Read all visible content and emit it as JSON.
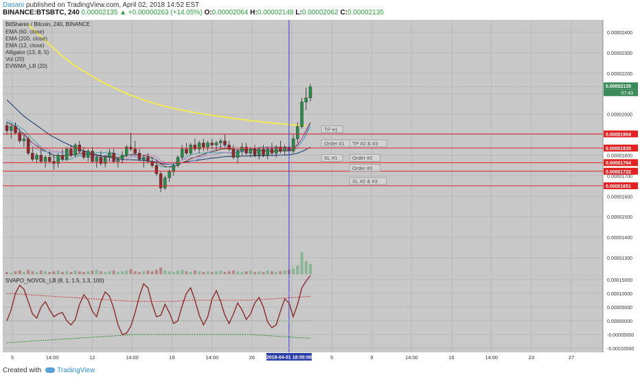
{
  "header": {
    "author": "Dasani",
    "published": "published on TradingView.com, April 02, 2018 14:52 EST",
    "symbol": "BINANCE:BTSBTC, 240",
    "last": "0.00002135",
    "change_arrow": "▲",
    "change": "+0.00000263 (+14.05%)",
    "o_label": "O:",
    "o": "0.00002064",
    "h_label": "H:",
    "h": "0.00002148",
    "l_label": "L:",
    "l": "0.00002062",
    "c_label": "C:",
    "c": "0.00002135"
  },
  "legend": {
    "title": "BitShares / Bitcoin, 240, BINANCE",
    "indicators": [
      "EMA (60, close)",
      "EMA (200, close)",
      "EMA (12, close)",
      "Alligator (13, 8, 5)",
      "Vol (20)",
      "EVWMA_LB (20)"
    ]
  },
  "oscillator": {
    "title": "SVAPO_NOVOL_LB (8, 1, 1.5, 1.3, 100)"
  },
  "footer": {
    "created": "Created with",
    "brand": "TradingView"
  },
  "colors": {
    "bg": "#c8c8c8",
    "grid": "#b8b8b8",
    "up": "#2a8c4a",
    "down": "#8b2a2a",
    "ema200": "#f2ea4e",
    "ema60": "#2a4a7a",
    "ema12": "#6a2a2a",
    "level": "#e22222",
    "cursor": "#3a3ad8",
    "osc": "#8a2a2a",
    "osc_upper": "#cc3333",
    "osc_lower": "#2a8a2a",
    "osc_mid": "#7aa07a"
  },
  "chart_data": {
    "type": "candlestick",
    "title": "BitShares / Bitcoin, 240, BINANCE",
    "price_ticks": [
      "0.00002400",
      "0.00002300",
      "0.00002200",
      "0.00002100",
      "0.00002000",
      "0.00001900",
      "0.00001800",
      "0.00001700",
      "0.00001600",
      "0.00001500",
      "0.00001400",
      "0.00001300"
    ],
    "price_ylim": [
      1.22e-05,
      2.46e-05
    ],
    "x_ticks": [
      "5",
      "14:00",
      "12",
      "14:00",
      "19",
      "14:00",
      "26",
      "14:00",
      "5",
      "9",
      "14:00",
      "16",
      "14:00",
      "23",
      "27"
    ],
    "cursor_label": "2018-04-01 18:00:00",
    "last_price_label": "0.00002135",
    "countdown_label": "07:43",
    "last_price": 2.135e-05,
    "candles": [
      [
        1.945e-05,
        1.965e-05,
        1.9e-05,
        1.92e-05
      ],
      [
        1.92e-05,
        1.95e-05,
        1.88e-05,
        1.94e-05
      ],
      [
        1.94e-05,
        1.96e-05,
        1.9e-05,
        1.91e-05
      ],
      [
        1.91e-05,
        1.93e-05,
        1.86e-05,
        1.87e-05
      ],
      [
        1.87e-05,
        1.9e-05,
        1.84e-05,
        1.88e-05
      ],
      [
        1.88e-05,
        1.89e-05,
        1.8e-05,
        1.81e-05
      ],
      [
        1.81e-05,
        1.84e-05,
        1.77e-05,
        1.78e-05
      ],
      [
        1.78e-05,
        1.81e-05,
        1.76e-05,
        1.8e-05
      ],
      [
        1.8e-05,
        1.83e-05,
        1.76e-05,
        1.77e-05
      ],
      [
        1.77e-05,
        1.8e-05,
        1.74e-05,
        1.79e-05
      ],
      [
        1.79e-05,
        1.82e-05,
        1.76e-05,
        1.77e-05
      ],
      [
        1.77e-05,
        1.8e-05,
        1.73e-05,
        1.76e-05
      ],
      [
        1.76e-05,
        1.81e-05,
        1.74e-05,
        1.8e-05
      ],
      [
        1.8e-05,
        1.83e-05,
        1.77e-05,
        1.78e-05
      ],
      [
        1.78e-05,
        1.84e-05,
        1.77e-05,
        1.83e-05
      ],
      [
        1.83e-05,
        1.85e-05,
        1.79e-05,
        1.8e-05
      ],
      [
        1.8e-05,
        1.86e-05,
        1.79e-05,
        1.85e-05
      ],
      [
        1.85e-05,
        1.87e-05,
        1.81e-05,
        1.82e-05
      ],
      [
        1.82e-05,
        1.84e-05,
        1.78e-05,
        1.79e-05
      ],
      [
        1.79e-05,
        1.83e-05,
        1.77e-05,
        1.82e-05
      ],
      [
        1.82e-05,
        1.84e-05,
        1.76e-05,
        1.77e-05
      ],
      [
        1.77e-05,
        1.8e-05,
        1.74e-05,
        1.79e-05
      ],
      [
        1.79e-05,
        1.82e-05,
        1.75e-05,
        1.76e-05
      ],
      [
        1.76e-05,
        1.8e-05,
        1.74e-05,
        1.79e-05
      ],
      [
        1.79e-05,
        1.83e-05,
        1.77e-05,
        1.81e-05
      ],
      [
        1.81e-05,
        1.83e-05,
        1.76e-05,
        1.77e-05
      ],
      [
        1.77e-05,
        1.79e-05,
        1.74e-05,
        1.78e-05
      ],
      [
        1.78e-05,
        1.82e-05,
        1.76e-05,
        1.8e-05
      ],
      [
        1.8e-05,
        1.85e-05,
        1.79e-05,
        1.84e-05
      ],
      [
        1.84e-05,
        1.91e-05,
        1.82e-05,
        1.83e-05
      ],
      [
        1.83e-05,
        1.87e-05,
        1.8e-05,
        1.81e-05
      ],
      [
        1.81e-05,
        1.83e-05,
        1.77e-05,
        1.78e-05
      ],
      [
        1.78e-05,
        1.8e-05,
        1.74e-05,
        1.79e-05
      ],
      [
        1.79e-05,
        1.81e-05,
        1.76e-05,
        1.77e-05
      ],
      [
        1.77e-05,
        1.79e-05,
        1.74e-05,
        1.75e-05
      ],
      [
        1.75e-05,
        1.77e-05,
        1.7e-05,
        1.71e-05
      ],
      [
        1.71e-05,
        1.72e-05,
        1.62e-05,
        1.64e-05
      ],
      [
        1.64e-05,
        1.7e-05,
        1.63e-05,
        1.69e-05
      ],
      [
        1.69e-05,
        1.73e-05,
        1.67e-05,
        1.72e-05
      ],
      [
        1.72e-05,
        1.76e-05,
        1.7e-05,
        1.75e-05
      ],
      [
        1.75e-05,
        1.8e-05,
        1.74e-05,
        1.79e-05
      ],
      [
        1.79e-05,
        1.85e-05,
        1.78e-05,
        1.83e-05
      ],
      [
        1.83e-05,
        1.86e-05,
        1.8e-05,
        1.81e-05
      ],
      [
        1.81e-05,
        1.86e-05,
        1.8e-05,
        1.85e-05
      ],
      [
        1.85e-05,
        1.88e-05,
        1.82e-05,
        1.83e-05
      ],
      [
        1.83e-05,
        1.87e-05,
        1.81e-05,
        1.86e-05
      ],
      [
        1.86e-05,
        1.88e-05,
        1.82e-05,
        1.84e-05
      ],
      [
        1.84e-05,
        1.87e-05,
        1.82e-05,
        1.86e-05
      ],
      [
        1.86e-05,
        1.88e-05,
        1.83e-05,
        1.85e-05
      ],
      [
        1.85e-05,
        1.87e-05,
        1.82e-05,
        1.86e-05
      ],
      [
        1.86e-05,
        1.88e-05,
        1.83e-05,
        1.87e-05
      ],
      [
        1.87e-05,
        1.9e-05,
        1.84e-05,
        1.85e-05
      ],
      [
        1.85e-05,
        1.87e-05,
        1.82e-05,
        1.83e-05
      ],
      [
        1.83e-05,
        1.85e-05,
        1.78e-05,
        1.79e-05
      ],
      [
        1.79e-05,
        1.83e-05,
        1.76e-05,
        1.82e-05
      ],
      [
        1.82e-05,
        1.86e-05,
        1.8e-05,
        1.84e-05
      ],
      [
        1.84e-05,
        1.86e-05,
        1.8e-05,
        1.81e-05
      ],
      [
        1.81e-05,
        1.84e-05,
        1.79e-05,
        1.83e-05
      ],
      [
        1.83e-05,
        1.85e-05,
        1.79e-05,
        1.8e-05
      ],
      [
        1.8e-05,
        1.84e-05,
        1.78e-05,
        1.83e-05
      ],
      [
        1.83e-05,
        1.85e-05,
        1.79e-05,
        1.8e-05
      ],
      [
        1.8e-05,
        1.84e-05,
        1.78e-05,
        1.83e-05
      ],
      [
        1.83e-05,
        1.86e-05,
        1.8e-05,
        1.81e-05
      ],
      [
        1.81e-05,
        1.85e-05,
        1.79e-05,
        1.84e-05
      ],
      [
        1.84e-05,
        1.87e-05,
        1.81e-05,
        1.82e-05
      ],
      [
        1.82e-05,
        1.85e-05,
        1.8e-05,
        1.84e-05
      ],
      [
        1.84e-05,
        1.86e-05,
        1.81e-05,
        1.82e-05
      ],
      [
        1.82e-05,
        1.9e-05,
        1.81e-05,
        1.88e-05
      ],
      [
        1.88e-05,
        1.96e-05,
        1.86e-05,
        1.94e-05
      ],
      [
        1.94e-05,
        2.08e-05,
        1.93e-05,
        2.06e-05
      ],
      [
        2.06e-05,
        2.13e-05,
        2.02e-05,
        2.08e-05
      ],
      [
        2.08e-05,
        2.148e-05,
        2.062e-05,
        2.135e-05
      ]
    ],
    "volumes": [
      3,
      2,
      4,
      5,
      3,
      6,
      4,
      3,
      5,
      4,
      3,
      4,
      5,
      3,
      4,
      3,
      5,
      4,
      3,
      4,
      5,
      6,
      4,
      3,
      4,
      5,
      3,
      4,
      5,
      7,
      4,
      3,
      4,
      5,
      4,
      6,
      9,
      5,
      4,
      3,
      5,
      6,
      4,
      3,
      5,
      4,
      3,
      4,
      3,
      4,
      5,
      3,
      4,
      5,
      4,
      3,
      4,
      5,
      3,
      4,
      3,
      5,
      4,
      3,
      4,
      5,
      6,
      8,
      12,
      30,
      18,
      14
    ],
    "ema200": [
      2.44e-05,
      2.41e-05,
      2.38e-05,
      2.35e-05,
      2.32e-05,
      2.29e-05,
      2.265e-05,
      2.24e-05,
      2.22e-05,
      2.2e-05,
      2.18e-05,
      2.162e-05,
      2.145e-05,
      2.13e-05,
      2.115e-05,
      2.1e-05,
      2.088e-05,
      2.076e-05,
      2.065e-05,
      2.055e-05,
      2.045e-05,
      2.037e-05,
      2.029e-05,
      2.022e-05,
      2.016e-05,
      2.01e-05,
      2.004e-05,
      1.999e-05,
      1.994e-05,
      1.99e-05,
      1.985e-05,
      1.98e-05,
      1.976e-05,
      1.972e-05,
      1.968e-05,
      1.964e-05,
      1.96e-05,
      1.957e-05,
      1.954e-05,
      1.951e-05,
      1.948e-05,
      1.946e-05,
      1.944e-05
    ],
    "ema60": [
      2.07e-05,
      2.05e-05,
      2.03e-05,
      2.01e-05,
      1.99e-05,
      1.975e-05,
      1.96e-05,
      1.945e-05,
      1.93e-05,
      1.915e-05,
      1.9e-05,
      1.888e-05,
      1.877e-05,
      1.866e-05,
      1.856e-05,
      1.846e-05,
      1.837e-05,
      1.829e-05,
      1.821e-05,
      1.814e-05,
      1.808e-05,
      1.802e-05,
      1.798e-05,
      1.794e-05,
      1.79e-05,
      1.786e-05,
      1.782e-05,
      1.78e-05,
      1.778e-05,
      1.778e-05,
      1.777e-05,
      1.776e-05,
      1.774e-05,
      1.772e-05,
      1.77e-05,
      1.766e-05,
      1.76e-05,
      1.757e-05,
      1.756e-05,
      1.757e-05,
      1.76e-05,
      1.764e-05,
      1.767e-05,
      1.771e-05,
      1.774e-05,
      1.777e-05,
      1.78e-05,
      1.783e-05,
      1.786e-05,
      1.788e-05,
      1.791e-05,
      1.793e-05,
      1.794e-05,
      1.794e-05,
      1.795e-05,
      1.796e-05,
      1.796e-05,
      1.797e-05,
      1.797e-05,
      1.798e-05,
      1.798e-05,
      1.799e-05,
      1.799e-05,
      1.8e-05,
      1.801e-05,
      1.801e-05,
      1.802e-05,
      1.805e-05,
      1.81e-05,
      1.818e-05,
      1.828e-05,
      1.84e-05
    ],
    "ema12": [
      1.96e-05,
      1.95e-05,
      1.94e-05,
      1.92e-05,
      1.905e-05,
      1.88e-05,
      1.86e-05,
      1.845e-05,
      1.83e-05,
      1.82e-05,
      1.81e-05,
      1.8e-05,
      1.8e-05,
      1.796e-05,
      1.8e-05,
      1.8e-05,
      1.807e-05,
      1.809e-05,
      1.806e-05,
      1.808e-05,
      1.802e-05,
      1.8e-05,
      1.794e-05,
      1.794e-05,
      1.796e-05,
      1.792e-05,
      1.789e-05,
      1.791e-05,
      1.798e-05,
      1.803e-05,
      1.805e-05,
      1.801e-05,
      1.799e-05,
      1.795e-05,
      1.788e-05,
      1.776e-05,
      1.756e-05,
      1.746e-05,
      1.742e-05,
      1.744e-05,
      1.752e-05,
      1.764e-05,
      1.771e-05,
      1.783e-05,
      1.789e-05,
      1.798e-05,
      1.804e-05,
      1.812e-05,
      1.818e-05,
      1.823e-05,
      1.829e-05,
      1.832e-05,
      1.832e-05,
      1.826e-05,
      1.825e-05,
      1.828e-05,
      1.826e-05,
      1.827e-05,
      1.823e-05,
      1.824e-05,
      1.82e-05,
      1.821e-05,
      1.819e-05,
      1.821e-05,
      1.82e-05,
      1.823e-05,
      1.822e-05,
      1.83e-05,
      1.85e-05,
      1.88e-05,
      1.92e-05,
      1.96e-05
    ],
    "level_lines": [
      {
        "price": 1.904e-05,
        "label": "0.00001904"
      },
      {
        "price": 1.835e-05,
        "label": "0.00001835"
      },
      {
        "price": 1.764e-05,
        "label": "0.00001764"
      },
      {
        "price": 1.722e-05,
        "label": "0.00001722"
      },
      {
        "price": 1.651e-05,
        "label": "0.00001651"
      }
    ],
    "annotations": [
      {
        "text": "TP #1",
        "price": 1.904e-05,
        "slot": 0
      },
      {
        "text": "Order #1",
        "price": 1.835e-05,
        "slot": 0
      },
      {
        "text": "TP #2 & #3",
        "price": 1.835e-05,
        "slot": 1
      },
      {
        "text": "SL #1",
        "price": 1.764e-05,
        "slot": 0
      },
      {
        "text": "Order #2",
        "price": 1.764e-05,
        "slot": 1
      },
      {
        "text": "Order #3",
        "price": 1.722e-05,
        "slot": 1
      },
      {
        "text": "SL #2 & #3",
        "price": 1.651e-05,
        "slot": 1
      }
    ],
    "osc_ticks": [
      "0.00015000",
      "0.00010000",
      "0.00005000",
      "0.00000000",
      "-0.00005000",
      "-0.00010000"
    ],
    "osc_ylim": [
      -0.000115,
      0.000165
    ],
    "osc_values": [
      0.0,
      4e-05,
      0.0001,
      0.00013,
      0.000115,
      7e-05,
      2.5e-05,
      1e-05,
      5e-05,
      7e-05,
      4e-05,
      1.5e-05,
      2.5e-05,
      3e-05,
      0.0,
      -1.5e-05,
      5e-06,
      6e-05,
      9.5e-05,
      7.5e-05,
      3.5e-05,
      1.5e-05,
      7e-05,
      0.000105,
      9e-05,
      4.5e-05,
      -1.5e-05,
      -5e-05,
      -4.5e-05,
      -2e-05,
      3e-05,
      9e-05,
      0.000135,
      0.00012,
      6e-05,
      1.5e-05,
      2e-05,
      6e-05,
      3e-05,
      -1e-05,
      0.0,
      5.5e-05,
      0.0001,
      0.00012,
      7.5e-05,
      2e-05,
      -1.5e-05,
      1.5e-05,
      8e-05,
      0.00011,
      7e-05,
      2e-05,
      -1e-05,
      2.5e-05,
      6.5e-05,
      4e-05,
      5e-06,
      2.5e-05,
      6.5e-05,
      8.5e-05,
      5e-05,
      -5e-06,
      -2.5e-05,
      -1.5e-05,
      3.5e-05,
      8e-05,
      6.5e-05,
      1.5e-05,
      6e-05,
      0.00012,
      0.000145,
      0.000165
    ],
    "osc_upper": [
      0.0001,
      9.9e-05,
      9.8e-05,
      9.7e-05,
      9.6e-05,
      9.5e-05,
      9.4e-05,
      9.3e-05,
      9.2e-05,
      9.1e-05,
      9e-05,
      8.9e-05,
      8.8e-05,
      8.7e-05,
      8.6e-05,
      8.5e-05,
      8.4e-05,
      8.3e-05,
      8.2e-05,
      8.1e-05,
      8e-05,
      7.9e-05,
      7.8e-05,
      7.7e-05,
      7.6e-05,
      7.5e-05,
      7.4e-05,
      7.3e-05,
      7.25e-05,
      7.2e-05,
      7.15e-05,
      7.1e-05,
      7.1e-05,
      7.1e-05,
      7.1e-05,
      7.1e-05,
      7.1e-05,
      7.1e-05,
      7.1e-05,
      7.1e-05,
      7.2e-05,
      7.3e-05,
      7.4e-05,
      7.5e-05,
      7.5e-05,
      7.5e-05,
      7.5e-05,
      7.5e-05,
      7.5e-05,
      7.5e-05,
      7.5e-05,
      7.5e-05,
      7.5e-05,
      7.5e-05,
      7.5e-05,
      7.5e-05,
      7.5e-05,
      7.5e-05,
      7.6e-05,
      7.7e-05,
      7.8e-05,
      7.9e-05,
      8e-05,
      8.1e-05,
      8.2e-05,
      8.3e-05,
      8.4e-05,
      8.5e-05,
      8.6e-05,
      8.7e-05,
      8.8e-05,
      8.9e-05
    ],
    "osc_lower": [
      -8e-05,
      -7.9e-05,
      -7.8e-05,
      -7.7e-05,
      -7.6e-05,
      -7.5e-05,
      -7.4e-05,
      -7.3e-05,
      -7.2e-05,
      -7.1e-05,
      -7e-05,
      -6.9e-05,
      -6.8e-05,
      -6.7e-05,
      -6.6e-05,
      -6.5e-05,
      -6.4e-05,
      -6.3e-05,
      -6.2e-05,
      -6.1e-05,
      -6e-05,
      -5.9e-05,
      -5.8e-05,
      -5.7e-05,
      -5.6e-05,
      -5.5e-05,
      -5.4e-05,
      -5.3e-05,
      -5.2e-05,
      -5.1e-05,
      -5e-05,
      -5e-05,
      -5e-05,
      -5e-05,
      -5e-05,
      -5e-05,
      -5e-05,
      -5e-05,
      -5e-05,
      -5e-05,
      -5e-05,
      -5e-05,
      -5e-05,
      -5e-05,
      -5e-05,
      -5e-05,
      -5e-05,
      -5e-05,
      -5e-05,
      -5e-05,
      -5e-05,
      -5e-05,
      -5e-05,
      -5e-05,
      -5e-05,
      -5e-05,
      -5e-05,
      -5e-05,
      -5.1e-05,
      -5.2e-05,
      -5.3e-05,
      -5.4e-05,
      -5.5e-05,
      -5.6e-05,
      -5.7e-05,
      -5.8e-05,
      -5.9e-05,
      -6e-05,
      -6.1e-05,
      -6.2e-05,
      -6.3e-05,
      -6.4e-05
    ]
  }
}
